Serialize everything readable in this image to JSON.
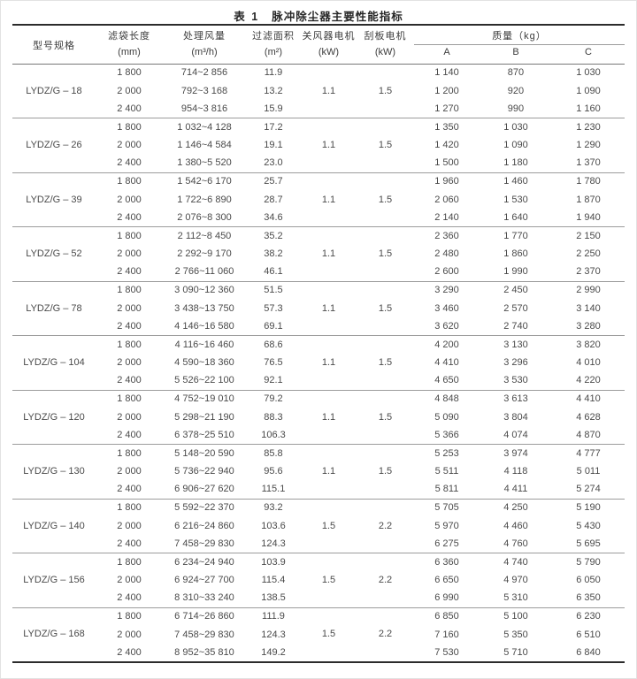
{
  "page": {
    "title_prefix": "表 1",
    "title": "脉冲除尘器主要性能指标"
  },
  "colors": {
    "text": "#4a4a4a",
    "heavy_rule": "#2b2b2b",
    "light_rule": "#9c9c9c"
  },
  "table": {
    "headers": {
      "model": "型号规格",
      "bag_length": {
        "label": "滤袋长度",
        "unit": "(mm)"
      },
      "airflow": {
        "label": "处理风量",
        "unit": "(m³/h)"
      },
      "filter_area": {
        "label": "过滤面积",
        "unit": "(m²)"
      },
      "airlock_motor": {
        "label": "关风器电机",
        "unit": "(kW)"
      },
      "scraper_motor": {
        "label": "刮板电机",
        "unit": "(kW)"
      },
      "mass": {
        "label": "质量（kg）",
        "sub": [
          "A",
          "B",
          "C"
        ]
      }
    },
    "groups": [
      {
        "model": "LYDZ/G – 18",
        "airlock_motor_kw": "1.1",
        "scraper_motor_kw": "1.5",
        "rows": [
          {
            "length": "1 800",
            "airflow": "714~2 856",
            "area": "11.9",
            "a": "1 140",
            "b": "870",
            "c": "1 030"
          },
          {
            "length": "2 000",
            "airflow": "792~3 168",
            "area": "13.2",
            "a": "1 200",
            "b": "920",
            "c": "1 090"
          },
          {
            "length": "2 400",
            "airflow": "954~3 816",
            "area": "15.9",
            "a": "1 270",
            "b": "990",
            "c": "1 160"
          }
        ]
      },
      {
        "model": "LYDZ/G – 26",
        "airlock_motor_kw": "1.1",
        "scraper_motor_kw": "1.5",
        "rows": [
          {
            "length": "1 800",
            "airflow": "1 032~4 128",
            "area": "17.2",
            "a": "1 350",
            "b": "1 030",
            "c": "1 230"
          },
          {
            "length": "2 000",
            "airflow": "1 146~4 584",
            "area": "19.1",
            "a": "1 420",
            "b": "1 090",
            "c": "1 290"
          },
          {
            "length": "2 400",
            "airflow": "1 380~5 520",
            "area": "23.0",
            "a": "1 500",
            "b": "1 180",
            "c": "1 370"
          }
        ]
      },
      {
        "model": "LYDZ/G – 39",
        "airlock_motor_kw": "1.1",
        "scraper_motor_kw": "1.5",
        "rows": [
          {
            "length": "1 800",
            "airflow": "1 542~6 170",
            "area": "25.7",
            "a": "1 960",
            "b": "1 460",
            "c": "1 780"
          },
          {
            "length": "2 000",
            "airflow": "1 722~6 890",
            "area": "28.7",
            "a": "2 060",
            "b": "1 530",
            "c": "1 870"
          },
          {
            "length": "2 400",
            "airflow": "2 076~8 300",
            "area": "34.6",
            "a": "2 140",
            "b": "1 640",
            "c": "1 940"
          }
        ]
      },
      {
        "model": "LYDZ/G – 52",
        "airlock_motor_kw": "1.1",
        "scraper_motor_kw": "1.5",
        "rows": [
          {
            "length": "1 800",
            "airflow": "2 112~8 450",
            "area": "35.2",
            "a": "2 360",
            "b": "1 770",
            "c": "2 150"
          },
          {
            "length": "2 000",
            "airflow": "2 292~9 170",
            "area": "38.2",
            "a": "2 480",
            "b": "1 860",
            "c": "2 250"
          },
          {
            "length": "2 400",
            "airflow": "2 766~11 060",
            "area": "46.1",
            "a": "2 600",
            "b": "1 990",
            "c": "2 370"
          }
        ]
      },
      {
        "model": "LYDZ/G – 78",
        "airlock_motor_kw": "1.1",
        "scraper_motor_kw": "1.5",
        "rows": [
          {
            "length": "1 800",
            "airflow": "3 090~12 360",
            "area": "51.5",
            "a": "3 290",
            "b": "2 450",
            "c": "2 990"
          },
          {
            "length": "2 000",
            "airflow": "3 438~13 750",
            "area": "57.3",
            "a": "3 460",
            "b": "2 570",
            "c": "3 140"
          },
          {
            "length": "2 400",
            "airflow": "4 146~16 580",
            "area": "69.1",
            "a": "3 620",
            "b": "2 740",
            "c": "3 280"
          }
        ]
      },
      {
        "model": "LYDZ/G – 104",
        "airlock_motor_kw": "1.1",
        "scraper_motor_kw": "1.5",
        "rows": [
          {
            "length": "1 800",
            "airflow": "4 116~16 460",
            "area": "68.6",
            "a": "4 200",
            "b": "3 130",
            "c": "3 820"
          },
          {
            "length": "2 000",
            "airflow": "4 590~18 360",
            "area": "76.5",
            "a": "4 410",
            "b": "3 296",
            "c": "4 010"
          },
          {
            "length": "2 400",
            "airflow": "5 526~22 100",
            "area": "92.1",
            "a": "4 650",
            "b": "3 530",
            "c": "4 220"
          }
        ]
      },
      {
        "model": "LYDZ/G – 120",
        "airlock_motor_kw": "1.1",
        "scraper_motor_kw": "1.5",
        "rows": [
          {
            "length": "1 800",
            "airflow": "4 752~19 010",
            "area": "79.2",
            "a": "4 848",
            "b": "3 613",
            "c": "4 410"
          },
          {
            "length": "2 000",
            "airflow": "5 298~21 190",
            "area": "88.3",
            "a": "5 090",
            "b": "3 804",
            "c": "4 628"
          },
          {
            "length": "2 400",
            "airflow": "6 378~25 510",
            "area": "106.3",
            "a": "5 366",
            "b": "4 074",
            "c": "4 870"
          }
        ]
      },
      {
        "model": "LYDZ/G – 130",
        "airlock_motor_kw": "1.1",
        "scraper_motor_kw": "1.5",
        "rows": [
          {
            "length": "1 800",
            "airflow": "5 148~20 590",
            "area": "85.8",
            "a": "5 253",
            "b": "3 974",
            "c": "4 777"
          },
          {
            "length": "2 000",
            "airflow": "5 736~22 940",
            "area": "95.6",
            "a": "5 511",
            "b": "4 118",
            "c": "5 011"
          },
          {
            "length": "2 400",
            "airflow": "6 906~27 620",
            "area": "115.1",
            "a": "5 811",
            "b": "4 411",
            "c": "5 274"
          }
        ]
      },
      {
        "model": "LYDZ/G – 140",
        "airlock_motor_kw": "1.5",
        "scraper_motor_kw": "2.2",
        "rows": [
          {
            "length": "1 800",
            "airflow": "5 592~22 370",
            "area": "93.2",
            "a": "5 705",
            "b": "4 250",
            "c": "5 190"
          },
          {
            "length": "2 000",
            "airflow": "6 216~24 860",
            "area": "103.6",
            "a": "5 970",
            "b": "4 460",
            "c": "5 430"
          },
          {
            "length": "2 400",
            "airflow": "7 458~29 830",
            "area": "124.3",
            "a": "6 275",
            "b": "4 760",
            "c": "5 695"
          }
        ]
      },
      {
        "model": "LYDZ/G – 156",
        "airlock_motor_kw": "1.5",
        "scraper_motor_kw": "2.2",
        "rows": [
          {
            "length": "1 800",
            "airflow": "6 234~24 940",
            "area": "103.9",
            "a": "6 360",
            "b": "4 740",
            "c": "5 790"
          },
          {
            "length": "2 000",
            "airflow": "6 924~27 700",
            "area": "115.4",
            "a": "6 650",
            "b": "4 970",
            "c": "6 050"
          },
          {
            "length": "2 400",
            "airflow": "8 310~33 240",
            "area": "138.5",
            "a": "6 990",
            "b": "5 310",
            "c": "6 350"
          }
        ]
      },
      {
        "model": "LYDZ/G – 168",
        "airlock_motor_kw": "1.5",
        "scraper_motor_kw": "2.2",
        "rows": [
          {
            "length": "1 800",
            "airflow": "6 714~26 860",
            "area": "111.9",
            "a": "6 850",
            "b": "5 100",
            "c": "6 230"
          },
          {
            "length": "2 000",
            "airflow": "7 458~29 830",
            "area": "124.3",
            "a": "7 160",
            "b": "5 350",
            "c": "6 510"
          },
          {
            "length": "2 400",
            "airflow": "8 952~35 810",
            "area": "149.2",
            "a": "7 530",
            "b": "5 710",
            "c": "6 840"
          }
        ]
      }
    ]
  }
}
